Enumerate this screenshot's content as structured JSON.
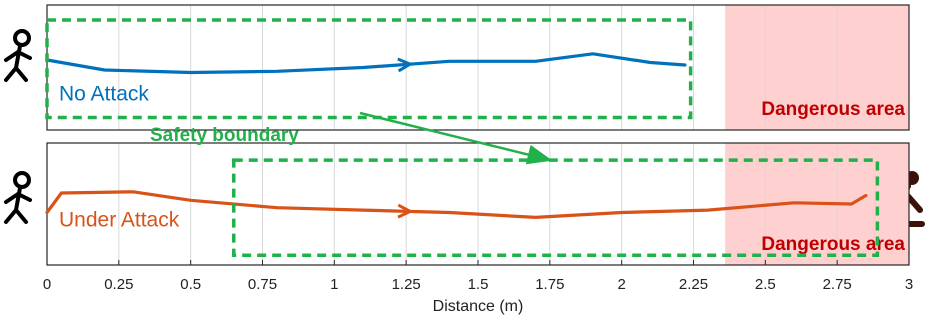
{
  "chart_data": [
    {
      "type": "line",
      "xlim": [
        0,
        3
      ],
      "ylim": [
        0,
        1
      ],
      "series": [
        {
          "name": "No Attack",
          "color": "#0072bd",
          "x": [
            0,
            0.2,
            0.5,
            0.8,
            1.1,
            1.4,
            1.7,
            1.9,
            2.1,
            2.22
          ],
          "values": [
            0.56,
            0.48,
            0.46,
            0.47,
            0.5,
            0.55,
            0.55,
            0.61,
            0.54,
            0.52
          ]
        }
      ],
      "danger_region": {
        "x": [
          2.36,
          3
        ],
        "label": "Dangerous area",
        "color": "#ffd0d0"
      },
      "safety_boundary": {
        "x": [
          0,
          2.24
        ],
        "y": [
          0.1,
          0.88
        ],
        "color": "#22b04a",
        "label": "Safety boundary"
      },
      "grid": true
    },
    {
      "type": "line",
      "xlim": [
        0,
        3
      ],
      "ylim": [
        0,
        1
      ],
      "xlabel": "Distance (m)",
      "xticks": [
        0,
        0.25,
        0.5,
        0.75,
        1,
        1.25,
        1.5,
        1.75,
        2,
        2.25,
        2.5,
        2.75,
        3
      ],
      "series": [
        {
          "name": "Under Attack",
          "color": "#d95319",
          "x": [
            0,
            0.05,
            0.3,
            0.5,
            0.8,
            1.1,
            1.4,
            1.7,
            2.0,
            2.3,
            2.6,
            2.8,
            2.85
          ],
          "values": [
            0.43,
            0.59,
            0.6,
            0.53,
            0.47,
            0.45,
            0.43,
            0.39,
            0.43,
            0.45,
            0.51,
            0.5,
            0.57
          ]
        }
      ],
      "danger_region": {
        "x": [
          2.36,
          3
        ],
        "label": "Dangerous area",
        "color": "#ffd0d0"
      },
      "safety_boundary": {
        "x": [
          0.65,
          2.89
        ],
        "y": [
          0.08,
          0.86
        ],
        "color": "#22b04a"
      },
      "grid": true
    }
  ]
}
